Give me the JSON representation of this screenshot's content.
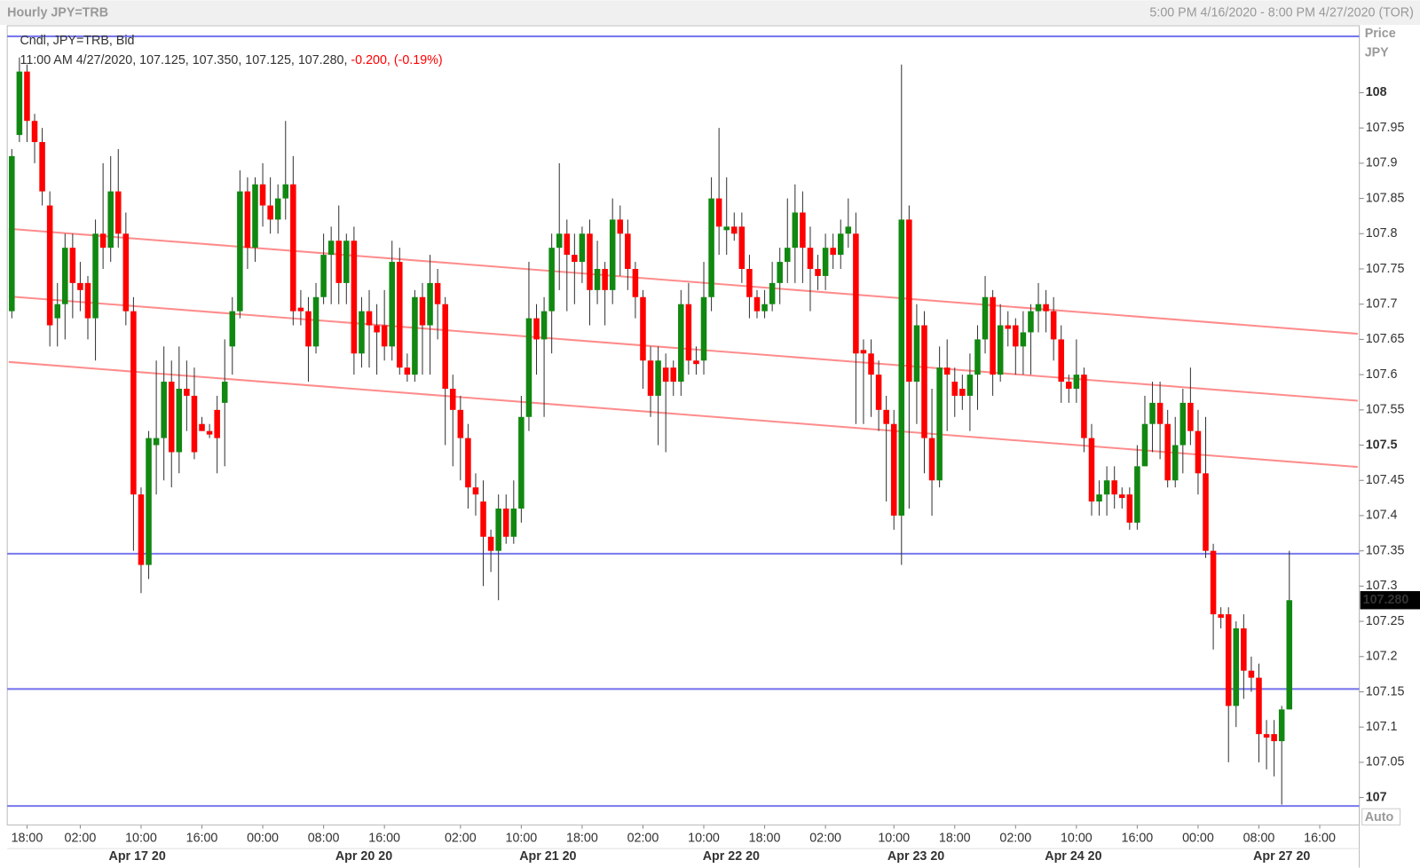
{
  "chart_data": {
    "type": "candlestick",
    "title": "Hourly JPY=TRB",
    "range_label": "5:00 PM 4/16/2020 - 8:00 PM 4/27/2020 (TOR)",
    "y_axis_label": "Price",
    "y_axis_unit": "JPY",
    "scale_mode": "Auto",
    "series_label": "Cndl, JPY=TRB, Bid",
    "info_label": "11:00 AM 4/27/2020, 107.125, 107.350, 107.125, 107.280,",
    "change_label": "-0.200, (-0.19%)",
    "last_price": {
      "value": 107.28,
      "label": "107.280"
    },
    "up_color": "#118811",
    "down_color": "#ff0000",
    "level_color": "#7878ee",
    "trend_color": "#ff8c8c",
    "change_color": "#ff0000",
    "open": [
      107.69,
      107.94,
      108.03,
      107.96,
      107.93,
      107.84,
      107.68,
      107.7,
      107.78,
      107.73,
      107.73,
      107.68,
      107.8,
      107.78,
      107.86,
      107.8,
      107.69,
      107.43,
      107.33,
      107.5,
      107.51,
      107.59,
      107.49,
      107.58,
      107.57,
      107.53,
      107.52,
      107.55,
      107.56,
      107.64,
      107.69,
      107.86,
      107.78,
      107.87,
      107.84,
      107.82,
      107.85,
      107.87,
      107.695,
      107.69,
      107.64,
      107.71,
      107.77,
      107.79,
      107.73,
      107.79,
      107.63,
      107.69,
      107.67,
      107.67,
      107.64,
      107.76,
      107.61,
      107.6,
      107.71,
      107.67,
      107.73,
      107.7,
      107.58,
      107.55,
      107.51,
      107.44,
      107.42,
      107.37,
      107.35,
      107.41,
      107.37,
      107.41,
      107.54,
      107.68,
      107.65,
      107.69,
      107.78,
      107.8,
      107.77,
      107.76,
      107.8,
      107.72,
      107.75,
      107.72,
      107.82,
      107.8,
      107.75,
      107.71,
      107.62,
      107.57,
      107.61,
      107.61,
      107.59,
      107.7,
      107.62,
      107.62,
      107.71,
      107.85,
      107.805,
      107.81,
      107.81,
      107.75,
      107.71,
      107.69,
      107.7,
      107.73,
      107.76,
      107.78,
      107.83,
      107.78,
      107.75,
      107.74,
      107.78,
      107.77,
      107.8,
      107.8,
      107.635,
      107.63,
      107.6,
      107.55,
      107.53,
      107.4,
      107.82,
      107.59,
      107.67,
      107.51,
      107.45,
      107.61,
      107.59,
      107.58,
      107.57,
      107.6,
      107.65,
      107.71,
      107.6,
      107.67,
      107.67,
      107.64,
      107.66,
      107.69,
      107.7,
      107.69,
      107.65,
      107.59,
      107.58,
      107.6,
      107.51,
      107.42,
      107.43,
      107.45,
      107.43,
      107.43,
      107.39,
      107.47,
      107.53,
      107.56,
      107.53,
      107.45,
      107.5,
      107.56,
      107.52,
      107.46,
      107.35,
      107.26,
      107.26,
      107.13,
      107.24,
      107.18,
      107.17,
      107.09,
      107.09,
      107.08,
      107.125
    ],
    "high": [
      107.92,
      108.05,
      108.04,
      107.97,
      107.95,
      107.86,
      107.73,
      107.8,
      107.8,
      107.76,
      107.74,
      107.82,
      107.9,
      107.91,
      107.92,
      107.83,
      107.71,
      107.44,
      107.52,
      107.62,
      107.64,
      107.62,
      107.64,
      107.62,
      107.61,
      107.54,
      107.53,
      107.57,
      107.65,
      107.71,
      107.89,
      107.88,
      107.88,
      107.9,
      107.88,
      107.87,
      107.96,
      107.91,
      107.72,
      107.71,
      107.73,
      107.8,
      107.81,
      107.84,
      107.8,
      107.81,
      107.71,
      107.72,
      107.7,
      107.72,
      107.79,
      107.78,
      107.63,
      107.72,
      107.73,
      107.77,
      107.75,
      107.71,
      107.6,
      107.57,
      107.53,
      107.46,
      107.45,
      107.38,
      107.43,
      107.43,
      107.45,
      107.57,
      107.76,
      107.7,
      107.71,
      107.8,
      107.9,
      107.82,
      107.8,
      107.81,
      107.82,
      107.79,
      107.76,
      107.85,
      107.84,
      107.82,
      107.76,
      107.72,
      107.64,
      107.64,
      107.63,
      107.62,
      107.72,
      107.73,
      107.64,
      107.76,
      107.88,
      107.95,
      107.88,
      107.83,
      107.83,
      107.77,
      107.72,
      107.72,
      107.76,
      107.78,
      107.85,
      107.87,
      107.86,
      107.81,
      107.77,
      107.8,
      107.8,
      107.82,
      107.85,
      107.83,
      107.65,
      107.65,
      107.62,
      107.57,
      107.55,
      108.04,
      107.84,
      107.7,
      107.69,
      107.58,
      107.64,
      107.65,
      107.61,
      107.6,
      107.63,
      107.67,
      107.74,
      107.72,
      107.7,
      107.69,
      107.68,
      107.69,
      107.7,
      107.73,
      107.72,
      107.71,
      107.67,
      107.6,
      107.65,
      107.61,
      107.53,
      107.45,
      107.47,
      107.47,
      107.44,
      107.44,
      107.5,
      107.57,
      107.59,
      107.59,
      107.55,
      107.54,
      107.58,
      107.61,
      107.55,
      107.54,
      107.36,
      107.27,
      107.27,
      107.25,
      107.26,
      107.2,
      107.19,
      107.11,
      107.11,
      107.13,
      107.35
    ],
    "low": [
      107.68,
      107.93,
      107.93,
      107.9,
      107.84,
      107.64,
      107.64,
      107.65,
      107.68,
      107.69,
      107.65,
      107.62,
      107.75,
      107.76,
      107.78,
      107.67,
      107.35,
      107.29,
      107.31,
      107.43,
      107.45,
      107.44,
      107.46,
      107.52,
      107.48,
      107.52,
      107.51,
      107.46,
      107.47,
      107.6,
      107.68,
      107.75,
      107.76,
      107.81,
      107.8,
      107.8,
      107.82,
      107.67,
      107.67,
      107.59,
      107.63,
      107.7,
      107.7,
      107.7,
      107.7,
      107.6,
      107.61,
      107.61,
      107.6,
      107.62,
      107.62,
      107.6,
      107.59,
      107.59,
      107.6,
      107.6,
      107.65,
      107.5,
      107.47,
      107.45,
      107.41,
      107.4,
      107.3,
      107.32,
      107.28,
      107.36,
      107.36,
      107.39,
      107.52,
      107.6,
      107.54,
      107.63,
      107.72,
      107.69,
      107.7,
      107.73,
      107.67,
      107.7,
      107.67,
      107.7,
      107.74,
      107.72,
      107.68,
      107.58,
      107.54,
      107.5,
      107.49,
      107.57,
      107.57,
      107.6,
      107.6,
      107.6,
      107.69,
      107.77,
      107.77,
      107.79,
      107.73,
      107.68,
      107.68,
      107.68,
      107.69,
      107.7,
      107.73,
      107.73,
      107.73,
      107.69,
      107.72,
      107.72,
      107.75,
      107.75,
      107.78,
      107.53,
      107.53,
      107.54,
      107.52,
      107.42,
      107.38,
      107.33,
      107.41,
      107.53,
      107.46,
      107.4,
      107.44,
      107.52,
      107.54,
      107.55,
      107.52,
      107.55,
      107.63,
      107.57,
      107.59,
      107.64,
      107.6,
      107.6,
      107.6,
      107.66,
      107.66,
      107.62,
      107.56,
      107.56,
      107.56,
      107.49,
      107.4,
      107.4,
      107.4,
      107.41,
      107.41,
      107.38,
      107.38,
      107.47,
      107.49,
      107.48,
      107.44,
      107.44,
      107.46,
      107.5,
      107.43,
      107.34,
      107.21,
      107.24,
      107.05,
      107.1,
      107.14,
      107.15,
      107.05,
      107.04,
      107.03,
      106.99,
      107.125
    ],
    "close": [
      107.91,
      108.03,
      107.96,
      107.93,
      107.86,
      107.67,
      107.7,
      107.78,
      107.73,
      107.72,
      107.68,
      107.8,
      107.78,
      107.86,
      107.8,
      107.69,
      107.43,
      107.33,
      107.51,
      107.51,
      107.59,
      107.49,
      107.58,
      107.57,
      107.49,
      107.52,
      107.515,
      107.51,
      107.59,
      107.69,
      107.86,
      107.78,
      107.87,
      107.84,
      107.82,
      107.85,
      107.87,
      107.69,
      107.69,
      107.64,
      107.71,
      107.77,
      107.79,
      107.73,
      107.79,
      107.63,
      107.69,
      107.67,
      107.66,
      107.64,
      107.76,
      107.61,
      107.6,
      107.71,
      107.67,
      107.73,
      107.7,
      107.58,
      107.55,
      107.51,
      107.44,
      107.43,
      107.37,
      107.35,
      107.41,
      107.37,
      107.41,
      107.54,
      107.68,
      107.65,
      107.69,
      107.78,
      107.8,
      107.77,
      107.76,
      107.8,
      107.72,
      107.75,
      107.72,
      107.82,
      107.8,
      107.75,
      107.71,
      107.62,
      107.57,
      107.62,
      107.59,
      107.59,
      107.7,
      107.62,
      107.615,
      107.71,
      107.85,
      107.81,
      107.81,
      107.8,
      107.75,
      107.71,
      107.69,
      107.7,
      107.73,
      107.76,
      107.78,
      107.83,
      107.78,
      107.75,
      107.74,
      107.78,
      107.77,
      107.8,
      107.81,
      107.63,
      107.63,
      107.6,
      107.55,
      107.53,
      107.4,
      107.82,
      107.59,
      107.67,
      107.51,
      107.45,
      107.61,
      107.6,
      107.57,
      107.57,
      107.6,
      107.65,
      107.71,
      107.6,
      107.67,
      107.665,
      107.64,
      107.66,
      107.69,
      107.7,
      107.69,
      107.65,
      107.59,
      107.58,
      107.6,
      107.51,
      107.42,
      107.43,
      107.45,
      107.43,
      107.425,
      107.39,
      107.47,
      107.53,
      107.56,
      107.53,
      107.45,
      107.5,
      107.56,
      107.52,
      107.46,
      107.35,
      107.26,
      107.255,
      107.13,
      107.24,
      107.18,
      107.17,
      107.09,
      107.085,
      107.08,
      107.125,
      107.28
    ],
    "levels": [
      108.08,
      107.346,
      107.154,
      106.988
    ],
    "trendlines": [
      {
        "x": [
          -0.4,
          177
        ],
        "y": [
          107.807,
          107.658
        ]
      },
      {
        "x": [
          -0.4,
          177
        ],
        "y": [
          107.711,
          107.563
        ]
      },
      {
        "x": [
          -0.4,
          177
        ],
        "y": [
          107.618,
          107.469
        ]
      }
    ],
    "xlim": [
      -0.6,
      177.2
    ],
    "ylim": [
      106.961,
      108.095
    ],
    "yticks": [
      108,
      107.95,
      107.9,
      107.85,
      107.8,
      107.75,
      107.7,
      107.65,
      107.6,
      107.55,
      107.5,
      107.45,
      107.4,
      107.35,
      107.3,
      107.25,
      107.2,
      107.15,
      107.1,
      107.05,
      107
    ],
    "xticks": [
      {
        "value": 2,
        "label": "18:00"
      },
      {
        "value": 9,
        "label": "02:00"
      },
      {
        "value": 17,
        "label": "10:00"
      },
      {
        "value": 25,
        "label": "16:00"
      },
      {
        "value": 33,
        "label": "00:00"
      },
      {
        "value": 41,
        "label": "08:00"
      },
      {
        "value": 49,
        "label": "16:00"
      },
      {
        "value": 59,
        "label": "02:00"
      },
      {
        "value": 67,
        "label": "10:00"
      },
      {
        "value": 75,
        "label": "18:00"
      },
      {
        "value": 83,
        "label": "02:00"
      },
      {
        "value": 91,
        "label": "10:00"
      },
      {
        "value": 99,
        "label": "18:00"
      },
      {
        "value": 107,
        "label": "02:00"
      },
      {
        "value": 116,
        "label": "10:00"
      },
      {
        "value": 124,
        "label": "18:00"
      },
      {
        "value": 132,
        "label": "02:00"
      },
      {
        "value": 140,
        "label": "10:00"
      },
      {
        "value": 148,
        "label": "16:00"
      },
      {
        "value": 156,
        "label": "00:00"
      },
      {
        "value": 164,
        "label": "08:00"
      },
      {
        "value": 172,
        "label": "16:00"
      }
    ],
    "date_ticks": [
      {
        "value": 16.5,
        "label": "Apr 17 20"
      },
      {
        "value": 46.3,
        "label": "Apr 20 20"
      },
      {
        "value": 70.5,
        "label": "Apr 21 20"
      },
      {
        "value": 94.6,
        "label": "Apr 22 20"
      },
      {
        "value": 118.9,
        "label": "Apr 23 20"
      },
      {
        "value": 139.6,
        "label": "Apr 24 20"
      },
      {
        "value": 167,
        "label": "Apr 27 20"
      }
    ]
  }
}
